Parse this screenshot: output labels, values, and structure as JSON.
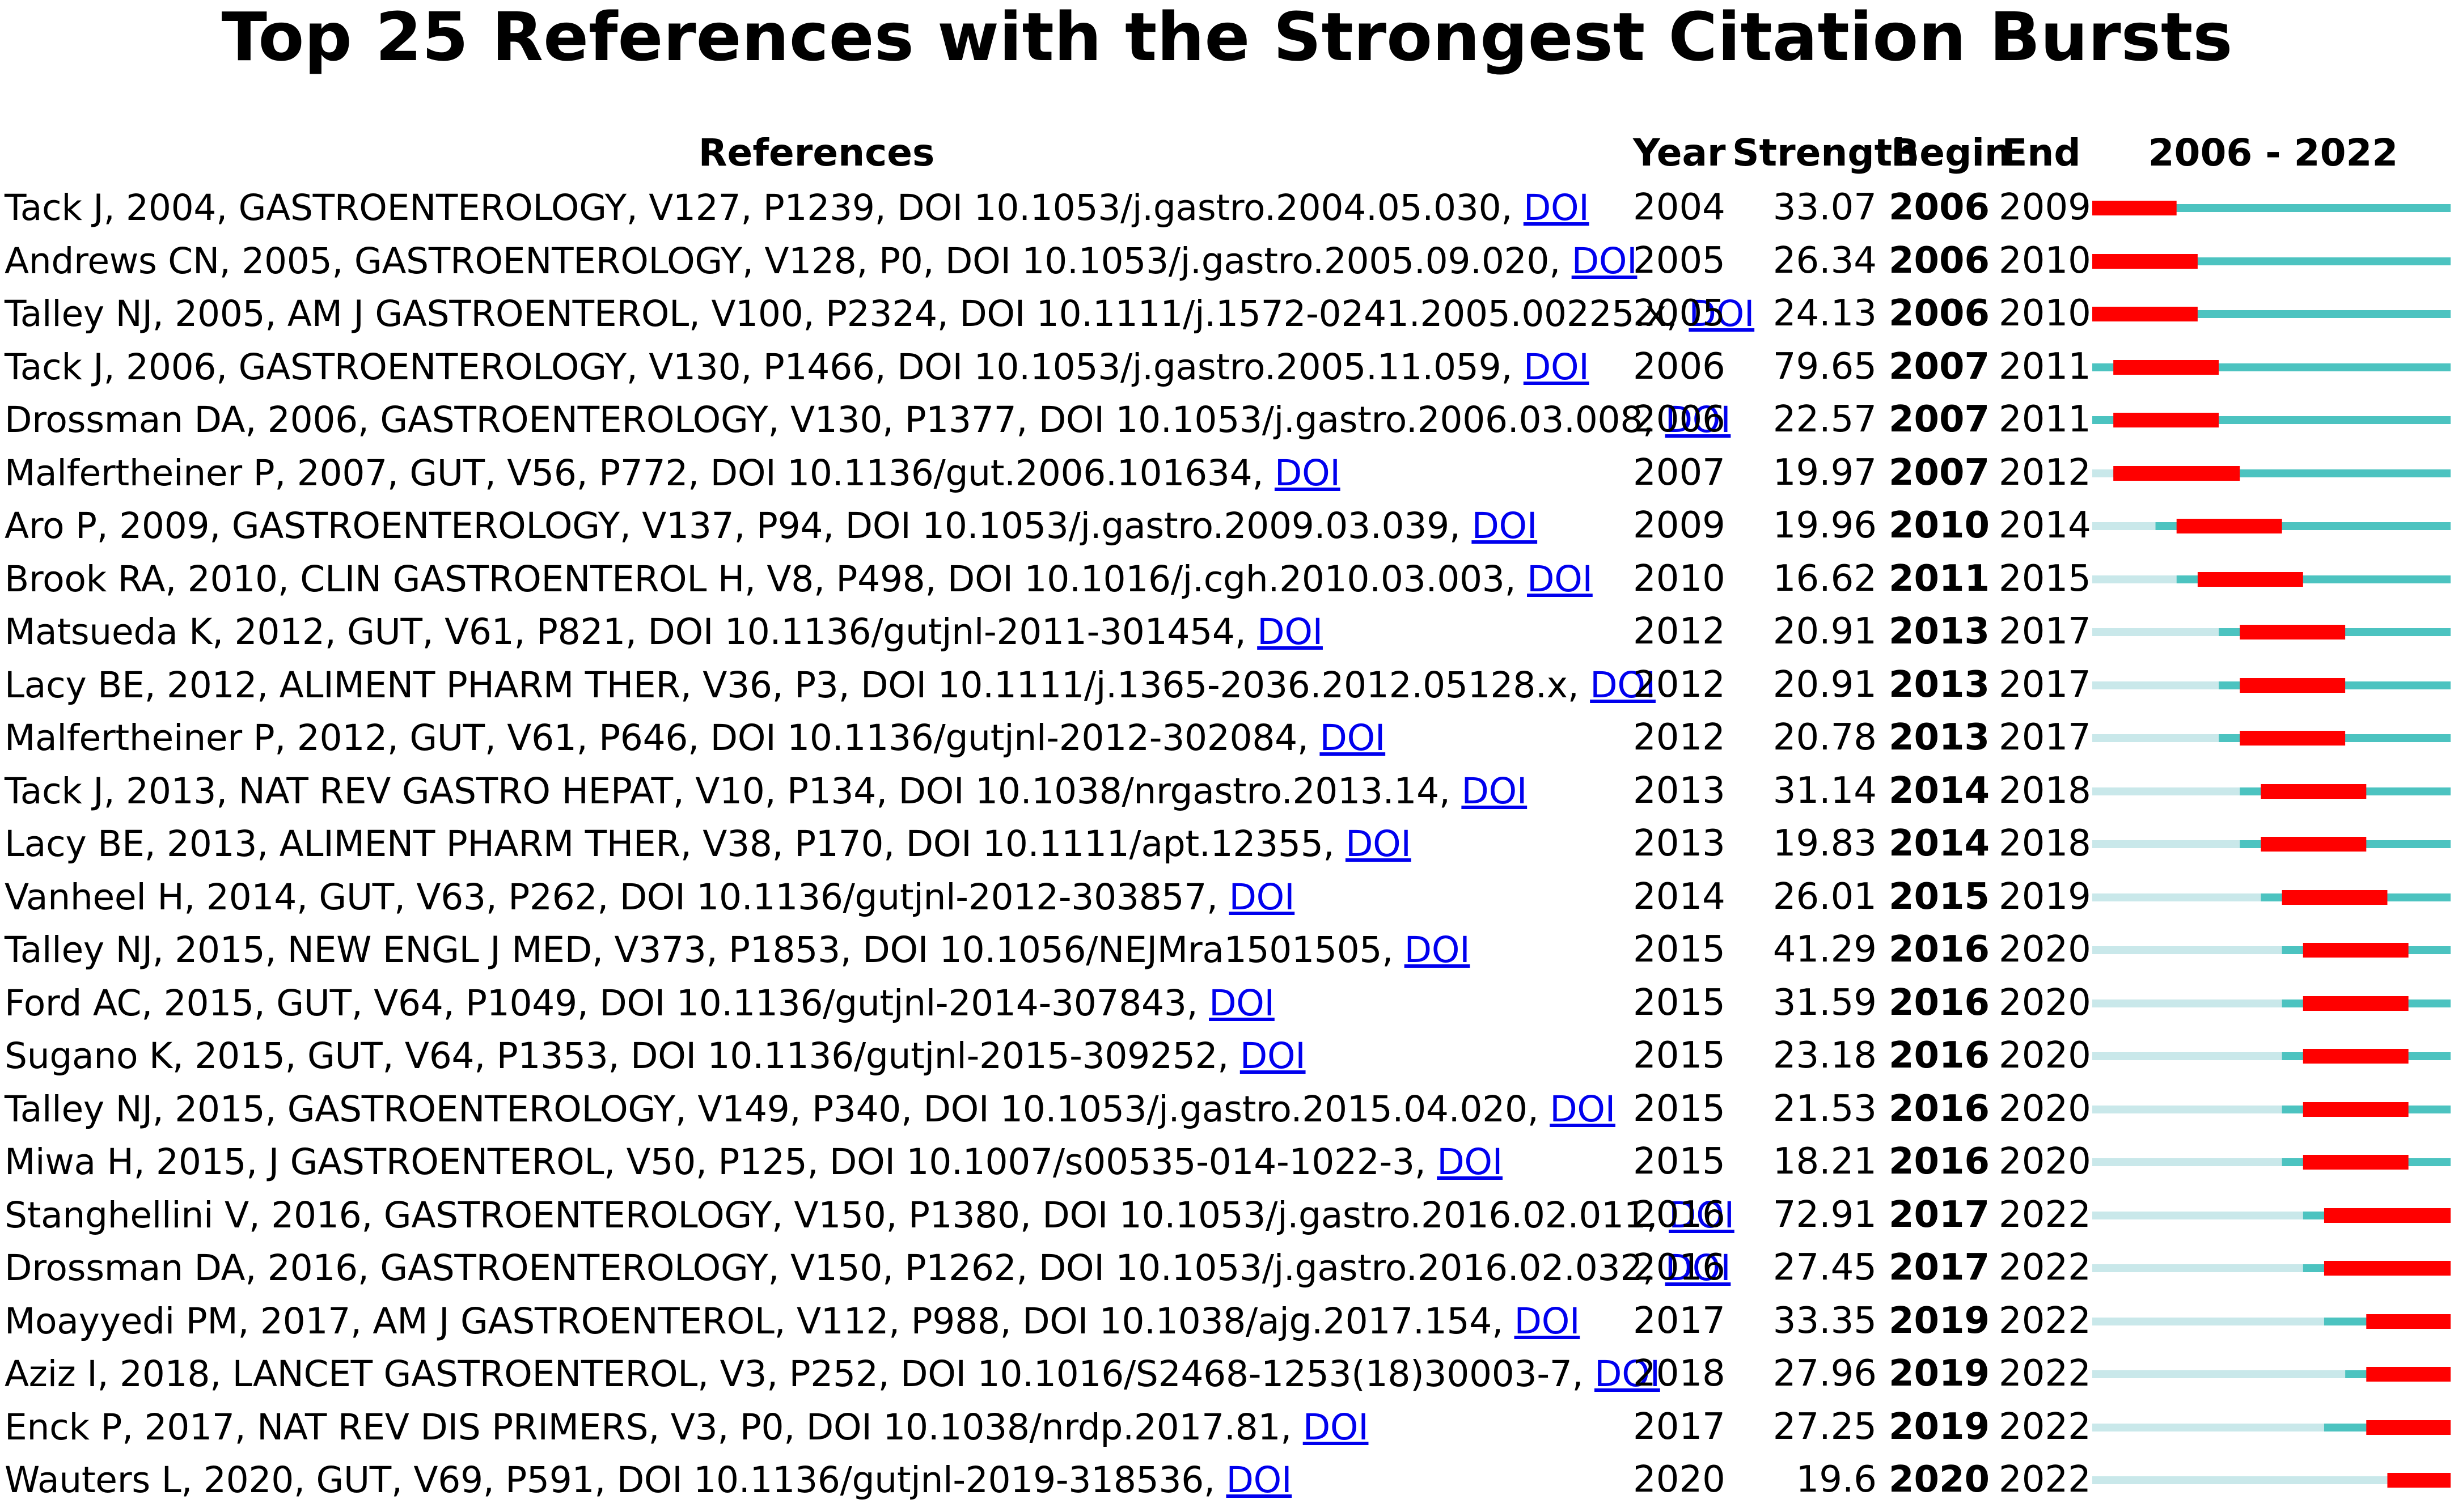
{
  "chart_data": {
    "type": "table",
    "title": "Top 25 References with the Strongest Citation Bursts",
    "columns": [
      "References",
      "Year",
      "Strength",
      "Begin",
      "End",
      "2006 - 2022"
    ],
    "range_start": 2006,
    "range_end": 2022,
    "link_label": "DOI",
    "colors": {
      "burst": "#ff0000",
      "active": "#4cc3c0",
      "inactive": "#c9e8ea",
      "link": "#0000ee"
    },
    "rows": [
      {
        "ref": "Tack J, 2004, GASTROENTEROLOGY, V127, P1239, DOI 10.1053/j.gastro.2004.05.030, ",
        "year": 2004,
        "strength": "33.07",
        "begin": 2006,
        "end": 2009
      },
      {
        "ref": "Andrews CN, 2005, GASTROENTEROLOGY, V128, P0, DOI 10.1053/j.gastro.2005.09.020, ",
        "year": 2005,
        "strength": "26.34",
        "begin": 2006,
        "end": 2010
      },
      {
        "ref": "Talley NJ, 2005, AM J GASTROENTEROL, V100, P2324, DOI 10.1111/j.1572-0241.2005.00225.x, ",
        "year": 2005,
        "strength": "24.13",
        "begin": 2006,
        "end": 2010
      },
      {
        "ref": "Tack J, 2006, GASTROENTEROLOGY, V130, P1466, DOI 10.1053/j.gastro.2005.11.059, ",
        "year": 2006,
        "strength": "79.65",
        "begin": 2007,
        "end": 2011
      },
      {
        "ref": "Drossman DA, 2006, GASTROENTEROLOGY, V130, P1377, DOI 10.1053/j.gastro.2006.03.008, ",
        "year": 2006,
        "strength": "22.57",
        "begin": 2007,
        "end": 2011
      },
      {
        "ref": "Malfertheiner P, 2007, GUT, V56, P772, DOI 10.1136/gut.2006.101634, ",
        "year": 2007,
        "strength": "19.97",
        "begin": 2007,
        "end": 2012
      },
      {
        "ref": "Aro P, 2009, GASTROENTEROLOGY, V137, P94, DOI 10.1053/j.gastro.2009.03.039, ",
        "year": 2009,
        "strength": "19.96",
        "begin": 2010,
        "end": 2014
      },
      {
        "ref": "Brook RA, 2010, CLIN GASTROENTEROL H, V8, P498, DOI 10.1016/j.cgh.2010.03.003, ",
        "year": 2010,
        "strength": "16.62",
        "begin": 2011,
        "end": 2015
      },
      {
        "ref": "Matsueda K, 2012, GUT, V61, P821, DOI 10.1136/gutjnl-2011-301454, ",
        "year": 2012,
        "strength": "20.91",
        "begin": 2013,
        "end": 2017
      },
      {
        "ref": "Lacy BE, 2012, ALIMENT PHARM THER, V36, P3, DOI 10.1111/j.1365-2036.2012.05128.x, ",
        "year": 2012,
        "strength": "20.91",
        "begin": 2013,
        "end": 2017
      },
      {
        "ref": "Malfertheiner P, 2012, GUT, V61, P646, DOI 10.1136/gutjnl-2012-302084, ",
        "year": 2012,
        "strength": "20.78",
        "begin": 2013,
        "end": 2017
      },
      {
        "ref": "Tack J, 2013, NAT REV GASTRO HEPAT, V10, P134, DOI 10.1038/nrgastro.2013.14, ",
        "year": 2013,
        "strength": "31.14",
        "begin": 2014,
        "end": 2018
      },
      {
        "ref": "Lacy BE, 2013, ALIMENT PHARM THER, V38, P170, DOI 10.1111/apt.12355, ",
        "year": 2013,
        "strength": "19.83",
        "begin": 2014,
        "end": 2018
      },
      {
        "ref": "Vanheel H, 2014, GUT, V63, P262, DOI 10.1136/gutjnl-2012-303857, ",
        "year": 2014,
        "strength": "26.01",
        "begin": 2015,
        "end": 2019
      },
      {
        "ref": "Talley NJ, 2015, NEW ENGL J MED, V373, P1853, DOI 10.1056/NEJMra1501505, ",
        "year": 2015,
        "strength": "41.29",
        "begin": 2016,
        "end": 2020
      },
      {
        "ref": "Ford AC, 2015, GUT, V64, P1049, DOI 10.1136/gutjnl-2014-307843, ",
        "year": 2015,
        "strength": "31.59",
        "begin": 2016,
        "end": 2020
      },
      {
        "ref": "Sugano K, 2015, GUT, V64, P1353, DOI 10.1136/gutjnl-2015-309252, ",
        "year": 2015,
        "strength": "23.18",
        "begin": 2016,
        "end": 2020
      },
      {
        "ref": "Talley NJ, 2015, GASTROENTEROLOGY, V149, P340, DOI 10.1053/j.gastro.2015.04.020, ",
        "year": 2015,
        "strength": "21.53",
        "begin": 2016,
        "end": 2020
      },
      {
        "ref": "Miwa H, 2015, J GASTROENTEROL, V50, P125, DOI 10.1007/s00535-014-1022-3, ",
        "year": 2015,
        "strength": "18.21",
        "begin": 2016,
        "end": 2020
      },
      {
        "ref": "Stanghellini V, 2016, GASTROENTEROLOGY, V150, P1380, DOI 10.1053/j.gastro.2016.02.011, ",
        "year": 2016,
        "strength": "72.91",
        "begin": 2017,
        "end": 2022
      },
      {
        "ref": "Drossman DA, 2016, GASTROENTEROLOGY, V150, P1262, DOI 10.1053/j.gastro.2016.02.032, ",
        "year": 2016,
        "strength": "27.45",
        "begin": 2017,
        "end": 2022
      },
      {
        "ref": "Moayyedi PM, 2017, AM J GASTROENTEROL, V112, P988, DOI 10.1038/ajg.2017.154, ",
        "year": 2017,
        "strength": "33.35",
        "begin": 2019,
        "end": 2022
      },
      {
        "ref": "Aziz I, 2018, LANCET GASTROENTEROL, V3, P252, DOI 10.1016/S2468-1253(18)30003-7, ",
        "year": 2018,
        "strength": "27.96",
        "begin": 2019,
        "end": 2022
      },
      {
        "ref": "Enck P, 2017, NAT REV DIS PRIMERS, V3, P0, DOI 10.1038/nrdp.2017.81, ",
        "year": 2017,
        "strength": "27.25",
        "begin": 2019,
        "end": 2022
      },
      {
        "ref": "Wauters L, 2020, GUT, V69, P591, DOI 10.1136/gutjnl-2019-318536, ",
        "year": 2020,
        "strength": "19.6",
        "begin": 2020,
        "end": 2022
      }
    ]
  }
}
